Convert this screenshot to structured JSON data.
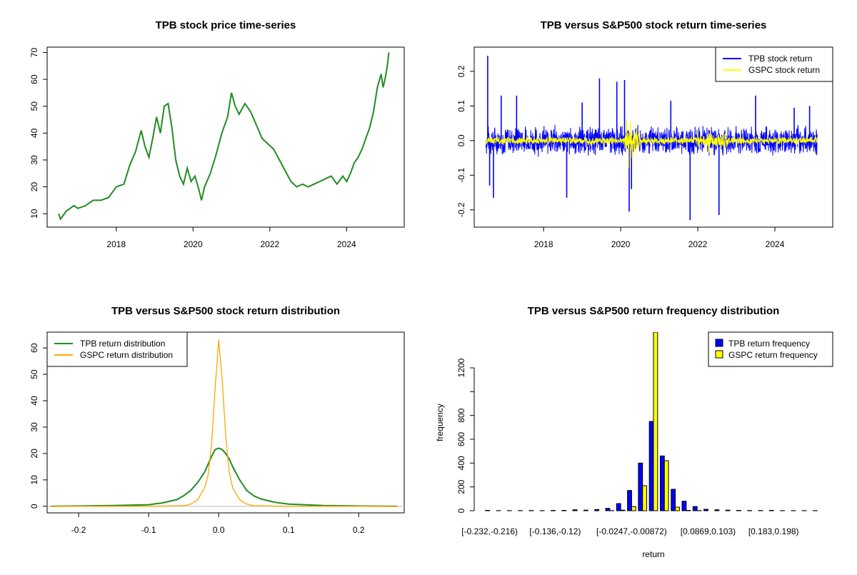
{
  "chart_data": [
    {
      "id": "price",
      "type": "line",
      "title": "TPB stock price time-series",
      "xlabel": "",
      "ylabel": "",
      "xlim": [
        2016.2,
        2025.5
      ],
      "ylim": [
        5,
        72
      ],
      "x_ticks": [
        2018,
        2020,
        2022,
        2024
      ],
      "x_tick_labels": [
        "2018",
        "2020",
        "2022",
        "2024"
      ],
      "y_ticks": [
        10,
        20,
        30,
        40,
        50,
        60,
        70
      ],
      "y_tick_labels": [
        "10",
        "20",
        "30",
        "40",
        "50",
        "60",
        "70"
      ],
      "grid": false,
      "series": [
        {
          "color": "#228B22",
          "x": [
            2016.5,
            2016.55,
            2016.6,
            2016.7,
            2016.8,
            2016.9,
            2017.0,
            2017.2,
            2017.4,
            2017.6,
            2017.8,
            2018.0,
            2018.2,
            2018.35,
            2018.5,
            2018.65,
            2018.75,
            2018.85,
            2018.95,
            2019.05,
            2019.15,
            2019.25,
            2019.35,
            2019.45,
            2019.55,
            2019.65,
            2019.75,
            2019.85,
            2019.95,
            2020.05,
            2020.15,
            2020.22,
            2020.3,
            2020.45,
            2020.6,
            2020.75,
            2020.9,
            2021.0,
            2021.1,
            2021.2,
            2021.35,
            2021.5,
            2021.65,
            2021.8,
            2021.95,
            2022.1,
            2022.25,
            2022.4,
            2022.55,
            2022.7,
            2022.85,
            2023.0,
            2023.15,
            2023.3,
            2023.45,
            2023.6,
            2023.75,
            2023.9,
            2024.0,
            2024.1,
            2024.2,
            2024.3,
            2024.4,
            2024.5,
            2024.6,
            2024.7,
            2024.8,
            2024.9,
            2024.95,
            2025.0,
            2025.05,
            2025.1
          ],
          "y": [
            10,
            8,
            9,
            11,
            12,
            13,
            12,
            13,
            15,
            15,
            16,
            20,
            21,
            28,
            33,
            41,
            35,
            31,
            38,
            46,
            40,
            50,
            51,
            42,
            30,
            24,
            21,
            27,
            22,
            24,
            19,
            15,
            20,
            25,
            32,
            40,
            46,
            55,
            50,
            47,
            51,
            48,
            43,
            38,
            36,
            34,
            30,
            26,
            22,
            20,
            21,
            20,
            21,
            22,
            23,
            24,
            21,
            24,
            22,
            25,
            29,
            31,
            34,
            38,
            42,
            48,
            57,
            62,
            57,
            60,
            64,
            70
          ]
        }
      ]
    },
    {
      "id": "returns",
      "type": "line",
      "title": "TPB versus S&P500 stock return time-series",
      "xlabel": "",
      "ylabel": "",
      "xlim": [
        2016.2,
        2025.5
      ],
      "ylim": [
        -0.25,
        0.27
      ],
      "x_ticks": [
        2018,
        2020,
        2022,
        2024
      ],
      "x_tick_labels": [
        "2018",
        "2020",
        "2022",
        "2024"
      ],
      "y_ticks": [
        -0.2,
        -0.1,
        0.0,
        0.1,
        0.2
      ],
      "y_tick_labels": [
        "-0.2",
        "-0.1",
        "0.0",
        "0.1",
        "0.2"
      ],
      "grid": false,
      "legend": "top-right",
      "series": [
        {
          "name": "TPB stock return",
          "color": "#0000FF",
          "amplitude": 0.03,
          "spikes_x": [
            2016.55,
            2016.6,
            2016.7,
            2016.9,
            2017.3,
            2018.6,
            2019.0,
            2019.45,
            2019.9,
            2020.1,
            2020.22,
            2020.28,
            2021.3,
            2021.8,
            2022.55,
            2023.5,
            2024.5,
            2024.9
          ],
          "spikes_y": [
            0.245,
            -0.13,
            -0.165,
            0.13,
            0.13,
            -0.165,
            0.11,
            0.18,
            0.17,
            0.175,
            -0.205,
            -0.14,
            0.115,
            -0.23,
            -0.215,
            0.13,
            0.095,
            0.1
          ]
        },
        {
          "name": "GSPC stock return",
          "color": "#FFFF00",
          "amplitude": 0.008,
          "spikes_x": [
            2020.15,
            2020.2,
            2020.25,
            2020.3,
            2022.0,
            2022.3
          ],
          "spikes_y": [
            0.06,
            -0.08,
            0.055,
            -0.05,
            0.03,
            -0.035
          ]
        }
      ]
    },
    {
      "id": "density",
      "type": "line",
      "title": "TPB versus S&P500 stock return distribution",
      "xlabel": "",
      "ylabel": "",
      "xlim": [
        -0.245,
        0.265
      ],
      "ylim": [
        -2.5,
        66
      ],
      "x_ticks": [
        -0.2,
        -0.1,
        0.0,
        0.1,
        0.2
      ],
      "x_tick_labels": [
        "-0.2",
        "-0.1",
        "0.0",
        "0.1",
        "0.2"
      ],
      "y_ticks": [
        0,
        10,
        20,
        30,
        40,
        50,
        60
      ],
      "y_tick_labels": [
        "0",
        "10",
        "20",
        "30",
        "40",
        "50",
        "60"
      ],
      "grid": false,
      "legend": "top-left",
      "series": [
        {
          "name": "TPB return distribution",
          "color": "#228B22",
          "x": [
            -0.24,
            -0.2,
            -0.15,
            -0.1,
            -0.08,
            -0.06,
            -0.05,
            -0.04,
            -0.03,
            -0.02,
            -0.015,
            -0.01,
            -0.005,
            0.0,
            0.005,
            0.01,
            0.015,
            0.02,
            0.03,
            0.04,
            0.05,
            0.06,
            0.08,
            0.1,
            0.15,
            0.2,
            0.255
          ],
          "y": [
            0,
            0.1,
            0.3,
            0.6,
            1.3,
            2.5,
            4,
            6,
            9,
            13,
            16,
            19,
            21.5,
            22,
            21.5,
            20,
            18,
            15,
            10,
            6,
            4,
            2.8,
            1.5,
            0.8,
            0.3,
            0.1,
            0
          ]
        },
        {
          "name": "GSPC return distribution",
          "color": "#FFA500",
          "x": [
            -0.24,
            -0.1,
            -0.05,
            -0.04,
            -0.03,
            -0.02,
            -0.015,
            -0.01,
            -0.005,
            0.0,
            0.005,
            0.01,
            0.015,
            0.02,
            0.03,
            0.04,
            0.05,
            0.1,
            0.255
          ],
          "y": [
            0,
            0,
            0.2,
            0.8,
            2.5,
            7,
            12,
            24,
            45,
            63,
            48,
            27,
            13,
            7,
            2.5,
            0.8,
            0.2,
            0,
            0
          ]
        }
      ]
    },
    {
      "id": "histogram",
      "type": "bar",
      "title": "TPB versus S&P500 return frequency distribution",
      "xlabel": "return",
      "ylabel": "frequency",
      "ylim": [
        0,
        1500
      ],
      "y_ticks": [
        0,
        200,
        400,
        600,
        800,
        1000,
        1200
      ],
      "y_tick_labels": [
        "0",
        "200",
        "400",
        "600",
        "800",
        "",
        "1200"
      ],
      "x_tick_labels": [
        "[-0.232,-0.216)",
        "[-0.136,-0.12)",
        "[-0.0247,-0.00872)",
        "[0.0869,0.103)",
        "[0.183,0.198)"
      ],
      "x_tick_positions": [
        0,
        6,
        13,
        20,
        26
      ],
      "grid": false,
      "legend": "top-right",
      "categories_count": 31,
      "series": [
        {
          "name": "TPB return frequency",
          "color": "#0000FF",
          "values": [
            3,
            1,
            1,
            1,
            2,
            1,
            3,
            3,
            8,
            5,
            10,
            20,
            60,
            170,
            400,
            750,
            460,
            180,
            80,
            35,
            12,
            8,
            5,
            3,
            2,
            2,
            3,
            1,
            1,
            1,
            1
          ]
        },
        {
          "name": "GSPC return frequency",
          "color": "#FFFF00",
          "values": [
            0,
            0,
            0,
            0,
            0,
            0,
            0,
            0,
            0,
            0,
            0,
            1,
            5,
            35,
            210,
            1500,
            420,
            30,
            3,
            1,
            0,
            0,
            0,
            0,
            0,
            0,
            0,
            0,
            0,
            0,
            0
          ]
        }
      ]
    }
  ]
}
